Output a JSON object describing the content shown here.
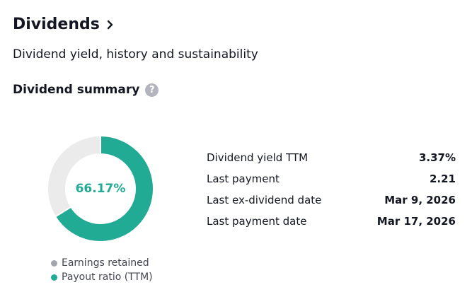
{
  "header": {
    "title": "Dividends",
    "subtitle": "Dividend yield, history and sustainability"
  },
  "summary": {
    "title": "Dividend summary",
    "help_glyph": "?",
    "payout_percent_label": "66.17%",
    "rows": [
      {
        "label": "Dividend yield TTM",
        "value": "3.37%"
      },
      {
        "label": "Last payment",
        "value": "2.21"
      },
      {
        "label": "Last ex-dividend date",
        "value": "Mar 9, 2026"
      },
      {
        "label": "Last payment date",
        "value": "Mar 17, 2026"
      }
    ]
  },
  "chart_data": {
    "type": "pie",
    "categories": [
      "Earnings retained",
      "Payout ratio (TTM)"
    ],
    "values": [
      33.83,
      66.17
    ],
    "colors": [
      "#ebebeb",
      "#22ab94"
    ],
    "legend_colors": [
      "#a3a6af",
      "#22ab94"
    ],
    "legend_position": "bottom"
  },
  "icons": {
    "title_chevron": "chevron-right-icon",
    "help": "question-mark-icon"
  }
}
